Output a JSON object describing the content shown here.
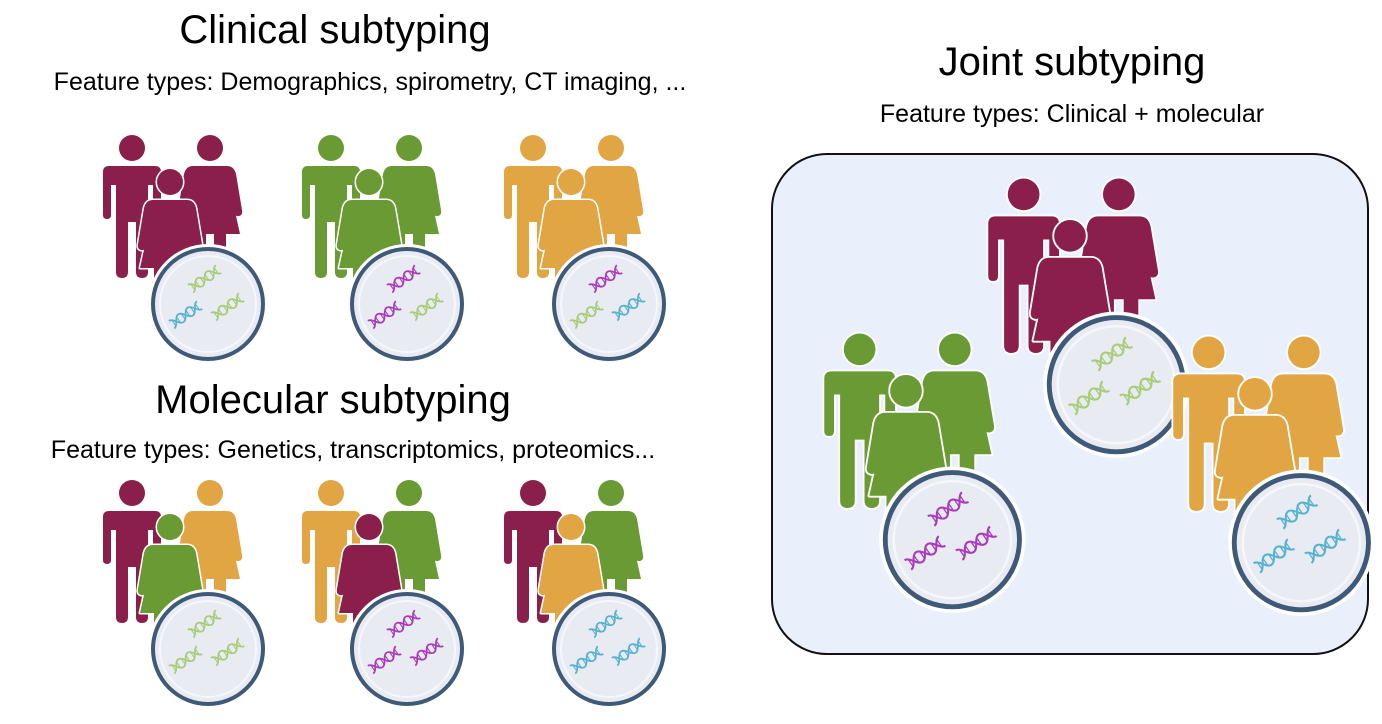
{
  "clinical": {
    "title": "Clinical subtyping",
    "subtitle": "Feature types: Demographics, spirometry, CT imaging, ...",
    "groups": [
      {
        "people": [
          "maroon",
          "maroon",
          "maroon"
        ],
        "dna": [
          "green",
          "blue",
          "green"
        ]
      },
      {
        "people": [
          "green",
          "green",
          "green"
        ],
        "dna": [
          "purple",
          "purple",
          "green"
        ]
      },
      {
        "people": [
          "orange",
          "orange",
          "orange"
        ],
        "dna": [
          "purple",
          "green",
          "blue"
        ]
      }
    ]
  },
  "molecular": {
    "title": "Molecular subtyping",
    "subtitle": "Feature types: Genetics, transcriptomics, proteomics...",
    "groups": [
      {
        "people": [
          "maroon",
          "orange",
          "green"
        ],
        "dna": [
          "green",
          "green",
          "green"
        ]
      },
      {
        "people": [
          "orange",
          "green",
          "maroon"
        ],
        "dna": [
          "purple",
          "purple",
          "purple"
        ]
      },
      {
        "people": [
          "maroon",
          "green",
          "orange"
        ],
        "dna": [
          "blue",
          "blue",
          "blue"
        ]
      }
    ]
  },
  "joint": {
    "title": "Joint subtyping",
    "subtitle": "Feature types: Clinical + molecular",
    "groups": [
      {
        "people": [
          "maroon",
          "maroon",
          "maroon"
        ],
        "dna": [
          "green",
          "green",
          "green"
        ]
      },
      {
        "people": [
          "green",
          "green",
          "green"
        ],
        "dna": [
          "purple",
          "purple",
          "purple"
        ]
      },
      {
        "people": [
          "orange",
          "orange",
          "orange"
        ],
        "dna": [
          "blue",
          "blue",
          "blue"
        ]
      }
    ]
  },
  "colors": {
    "maroon": "#8b1f4b",
    "green": "#6a9a34",
    "orange": "#e2a544",
    "dna_green": "#a8cc78",
    "dna_blue": "#59b2cc",
    "dna_purple": "#a93cba",
    "circle_fill": "#e8ebf2",
    "circle_stroke": "#3f5a78",
    "panel_fill": "#eaf0fb"
  }
}
